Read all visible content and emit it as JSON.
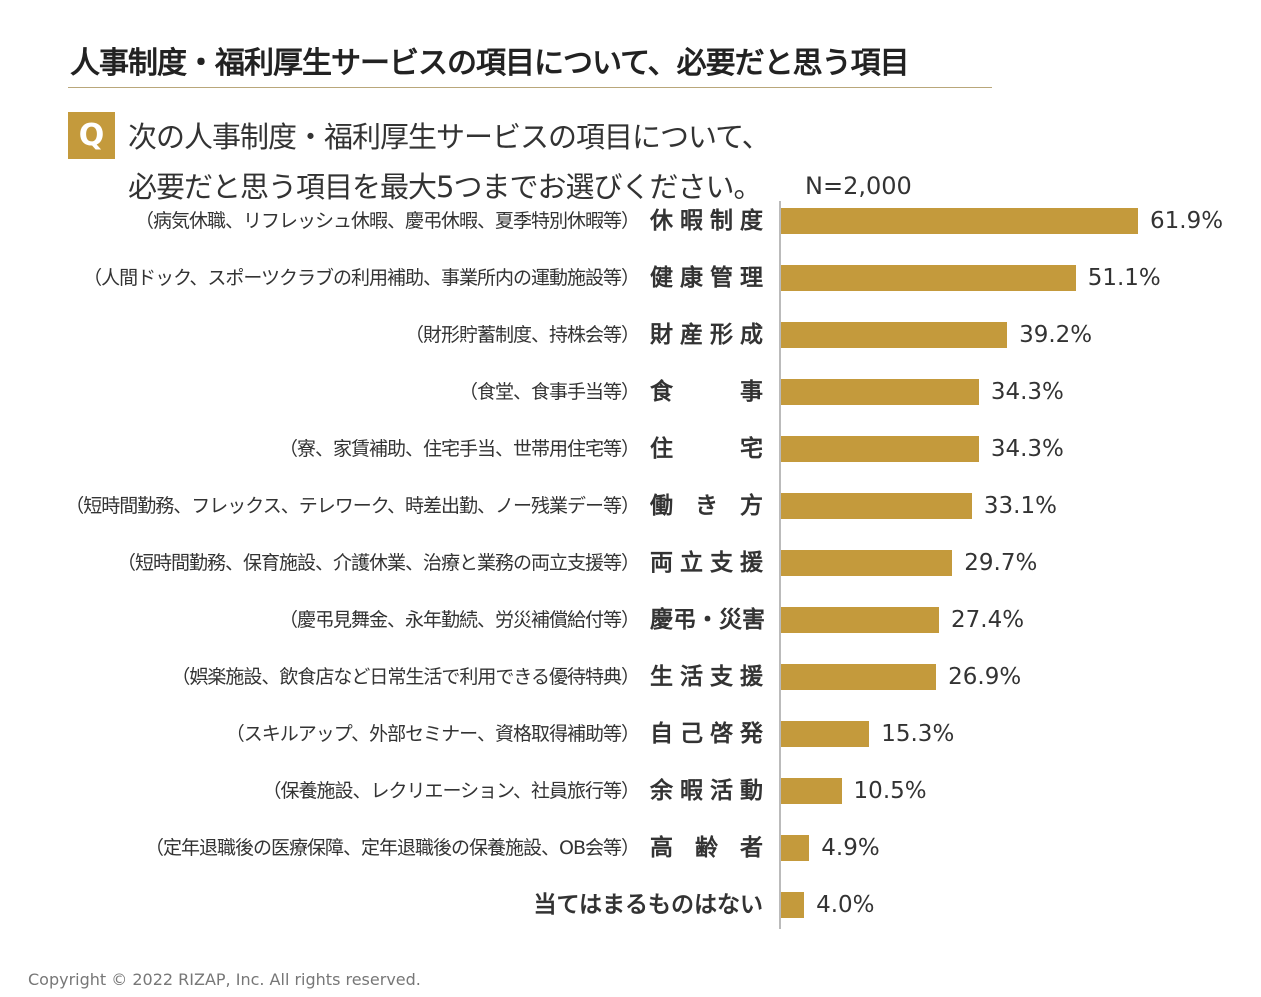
{
  "title": "人事制度・福利厚生サービスの項目について、必要だと思う項目",
  "question": {
    "badge": "Q",
    "line1": "次の人事制度・福利厚生サービスの項目について、",
    "line2": "必要だと思う項目を最大5つまでお選びください。"
  },
  "sample": "N=2,000",
  "copyright": "Copyright © 2022 RIZAP, Inc. All rights reserved.",
  "colors": {
    "bar": "#c49a3c",
    "badge": "#c49a3c"
  },
  "chart_data": {
    "type": "bar",
    "orientation": "horizontal",
    "unit": "%",
    "xlim": [
      0,
      70
    ],
    "grid": false,
    "categories": [
      "休暇制度",
      "健康管理",
      "財産形成",
      "食　事",
      "住　宅",
      "働き方",
      "両立支援",
      "慶弔・災害",
      "生活支援",
      "自己啓発",
      "余暇活動",
      "高齢者",
      "当てはまるものはない"
    ],
    "descriptions": [
      "（病気休職、リフレッシュ休暇、慶弔休暇、夏季特別休暇等）",
      "（人間ドック、スポーツクラブの利用補助、事業所内の運動施設等）",
      "（財形貯蓄制度、持株会等）",
      "（食堂、食事手当等）",
      "（寮、家賃補助、住宅手当、世帯用住宅等）",
      "（短時間勤務、フレックス、テレワーク、時差出勤、ノー残業デー等）",
      "（短時間勤務、保育施設、介護休業、治療と業務の両立支援等）",
      "（慶弔見舞金、永年勤続、労災補償給付等）",
      "（娯楽施設、飲食店など日常生活で利用できる優待特典）",
      "（スキルアップ、外部セミナー、資格取得補助等）",
      "（保養施設、レクリエーション、社員旅行等）",
      "（定年退職後の医療保障、定年退職後の保養施設、OB会等）",
      ""
    ],
    "values": [
      61.9,
      51.1,
      39.2,
      34.3,
      34.3,
      33.1,
      29.7,
      27.4,
      26.9,
      15.3,
      10.5,
      4.9,
      4.0
    ],
    "labels": [
      "61.9%",
      "51.1%",
      "39.2%",
      "34.3%",
      "34.3%",
      "33.1%",
      "29.7%",
      "27.4%",
      "26.9%",
      "15.3%",
      "10.5%",
      "4.9%",
      "4.0%"
    ]
  }
}
